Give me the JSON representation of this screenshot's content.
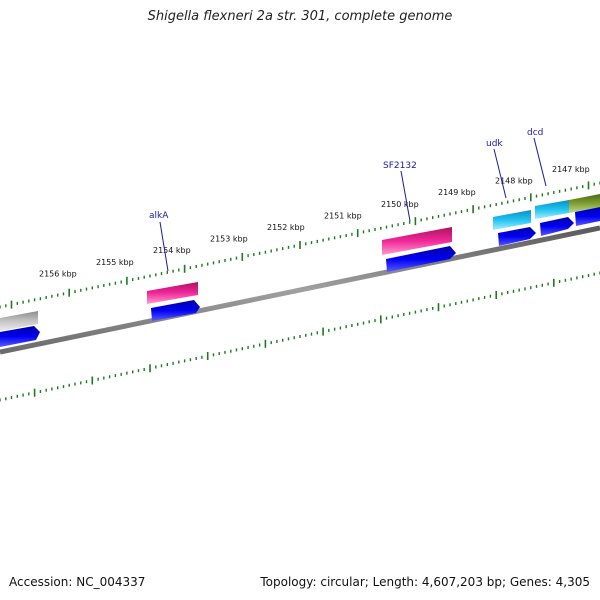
{
  "title": "Shigella flexneri 2a str. 301, complete genome",
  "footer": {
    "accession": "Accession: NC_004337",
    "summary": "Topology: circular; Length: 4,607,203 bp; Genes: 4,305"
  },
  "ticks": [
    "2147 kbp",
    "2148 kbp",
    "2149 kbp",
    "2150 kbp",
    "2151 kbp",
    "2152 kbp",
    "2153 kbp",
    "2154 kbp",
    "2155 kbp",
    "2156 kbp"
  ],
  "genes": [
    {
      "name": "alkA"
    },
    {
      "name": "SF2132"
    },
    {
      "name": "udk"
    },
    {
      "name": "dcd"
    }
  ],
  "colors": {
    "backbone": "#808080",
    "tick": "#1d7a1d",
    "cds": "#0000dd",
    "gene_pink": "#e8208c",
    "gene_cyan": "#10b8e8",
    "gene_olive": "#6b8e23",
    "gene_gray": "#b4b4b4",
    "label": "#1a1aa8"
  }
}
